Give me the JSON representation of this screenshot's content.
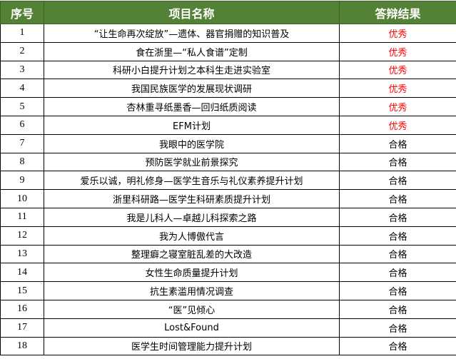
{
  "header": {
    "col_index": "序号",
    "col_name": "项目名称",
    "col_result": "答辩结果"
  },
  "colors": {
    "header_bg": "#538135",
    "excellent": "#ff0000",
    "pass": "#000000"
  },
  "rows": [
    {
      "no": "1",
      "name": "“让生命再次绽放”—遗体、器官捐赠的知识普及",
      "result": "优秀"
    },
    {
      "no": "2",
      "name": "食在浙里—“私人食谱”定制",
      "result": "优秀"
    },
    {
      "no": "3",
      "name": "科研小白提升计划之本科生走进实验室",
      "result": "优秀"
    },
    {
      "no": "4",
      "name": "我国民族医学的发展现状调研",
      "result": "优秀"
    },
    {
      "no": "5",
      "name": "杏林重寻纸墨香—回归纸质阅读",
      "result": "优秀"
    },
    {
      "no": "6",
      "name": "EFM计划",
      "result": "优秀"
    },
    {
      "no": "7",
      "name": "我眼中的医学院",
      "result": "合格"
    },
    {
      "no": "8",
      "name": "预防医学就业前景探究",
      "result": "合格"
    },
    {
      "no": "9",
      "name": "爱乐以诚，明礼修身—医学生音乐与礼仪素养提升计划",
      "result": "合格"
    },
    {
      "no": "10",
      "name": "浙里科研路—医学生科研素质提升计划",
      "result": "合格"
    },
    {
      "no": "11",
      "name": "我是儿科人—卓越儿科探索之路",
      "result": "合格"
    },
    {
      "no": "12",
      "name": "我为人博傲代言",
      "result": "合格"
    },
    {
      "no": "13",
      "name": "整理癖之寝室脏乱差的大改造",
      "result": "合格"
    },
    {
      "no": "14",
      "name": "女性生命质量提升计划",
      "result": "合格"
    },
    {
      "no": "15",
      "name": "抗生素滥用情况调查",
      "result": "合格"
    },
    {
      "no": "16",
      "name": "“医”见倾心",
      "result": "合格"
    },
    {
      "no": "17",
      "name": "Lost&Found",
      "result": "合格"
    },
    {
      "no": "18",
      "name": "医学生时间管理能力提升计划",
      "result": "合格"
    }
  ]
}
